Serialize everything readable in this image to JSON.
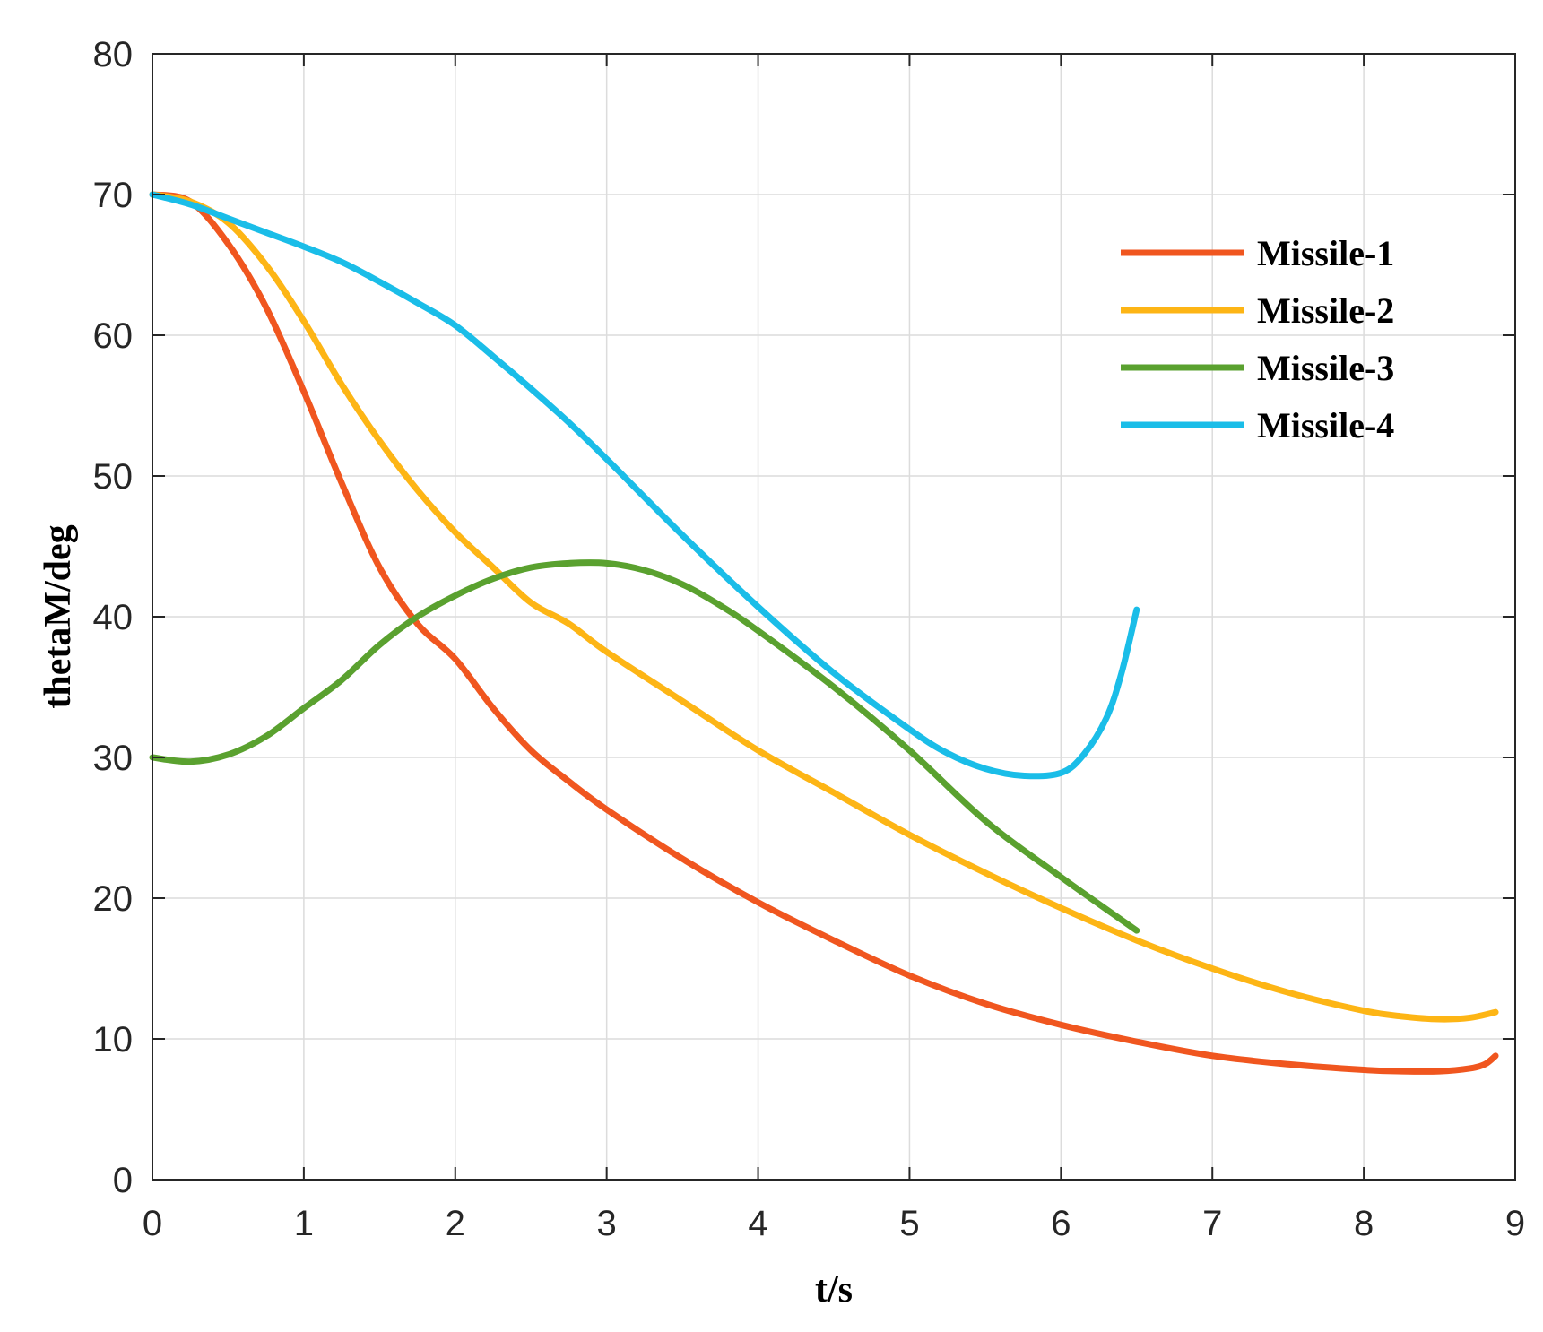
{
  "chart_data": {
    "type": "line",
    "title": "",
    "xlabel": "t/s",
    "ylabel": "thetaM/deg",
    "xlim": [
      0,
      9
    ],
    "ylim": [
      0,
      80
    ],
    "xticks": [
      0,
      1,
      2,
      3,
      4,
      5,
      6,
      7,
      8,
      9
    ],
    "yticks": [
      0,
      10,
      20,
      30,
      40,
      50,
      60,
      70,
      80
    ],
    "grid": true,
    "legend_position": "top-right",
    "series": [
      {
        "name": "Missile-1",
        "color": "#f0561f",
        "x": [
          0,
          0.25,
          0.5,
          0.75,
          1.0,
          1.25,
          1.5,
          1.75,
          2.0,
          2.25,
          2.5,
          2.75,
          3.0,
          3.5,
          4.0,
          4.5,
          5.0,
          5.5,
          6.0,
          6.5,
          7.0,
          7.5,
          8.0,
          8.25,
          8.5,
          8.7,
          8.8,
          8.87
        ],
        "y": [
          70,
          69.5,
          66.5,
          62,
          56,
          49.5,
          43.5,
          39.5,
          37,
          33.5,
          30.5,
          28.3,
          26.3,
          22.8,
          19.7,
          17.0,
          14.5,
          12.5,
          11.0,
          9.8,
          8.8,
          8.2,
          7.8,
          7.7,
          7.7,
          7.9,
          8.2,
          8.8
        ]
      },
      {
        "name": "Missile-2",
        "color": "#fdb515",
        "x": [
          0,
          0.25,
          0.5,
          0.75,
          1.0,
          1.25,
          1.5,
          1.75,
          2.0,
          2.25,
          2.5,
          2.75,
          3.0,
          3.5,
          4.0,
          4.5,
          5.0,
          5.5,
          6.0,
          6.5,
          7.0,
          7.5,
          8.0,
          8.25,
          8.5,
          8.7,
          8.87
        ],
        "y": [
          70,
          69.5,
          68,
          65,
          61,
          56.5,
          52.5,
          49,
          46,
          43.5,
          41,
          39.5,
          37.5,
          34.0,
          30.5,
          27.5,
          24.5,
          21.8,
          19.3,
          17.0,
          15.0,
          13.3,
          12.0,
          11.6,
          11.4,
          11.5,
          11.9
        ]
      },
      {
        "name": "Missile-3",
        "color": "#5aa12f",
        "x": [
          0,
          0.25,
          0.5,
          0.75,
          1.0,
          1.25,
          1.5,
          1.75,
          2.0,
          2.25,
          2.5,
          2.75,
          3.0,
          3.25,
          3.5,
          3.75,
          4.0,
          4.5,
          5.0,
          5.5,
          6.0,
          6.5
        ],
        "y": [
          30,
          29.7,
          30.2,
          31.5,
          33.5,
          35.5,
          38,
          40,
          41.5,
          42.7,
          43.5,
          43.8,
          43.8,
          43.3,
          42.3,
          40.8,
          39,
          35,
          30.5,
          25.5,
          21.5,
          17.7
        ]
      },
      {
        "name": "Missile-4",
        "color": "#1abde8",
        "x": [
          0,
          0.25,
          0.5,
          0.75,
          1.0,
          1.25,
          1.5,
          1.75,
          2.0,
          2.25,
          2.5,
          2.75,
          3.0,
          3.5,
          4.0,
          4.5,
          5.0,
          5.25,
          5.5,
          5.75,
          6.0,
          6.15,
          6.3,
          6.4,
          6.5
        ],
        "y": [
          70,
          69.3,
          68.3,
          67.3,
          66.3,
          65.2,
          63.8,
          62.3,
          60.7,
          58.5,
          56.2,
          53.8,
          51.2,
          45.8,
          40.7,
          36.0,
          32.0,
          30.3,
          29.2,
          28.7,
          28.9,
          30.2,
          32.8,
          36.0,
          40.5
        ]
      }
    ]
  }
}
